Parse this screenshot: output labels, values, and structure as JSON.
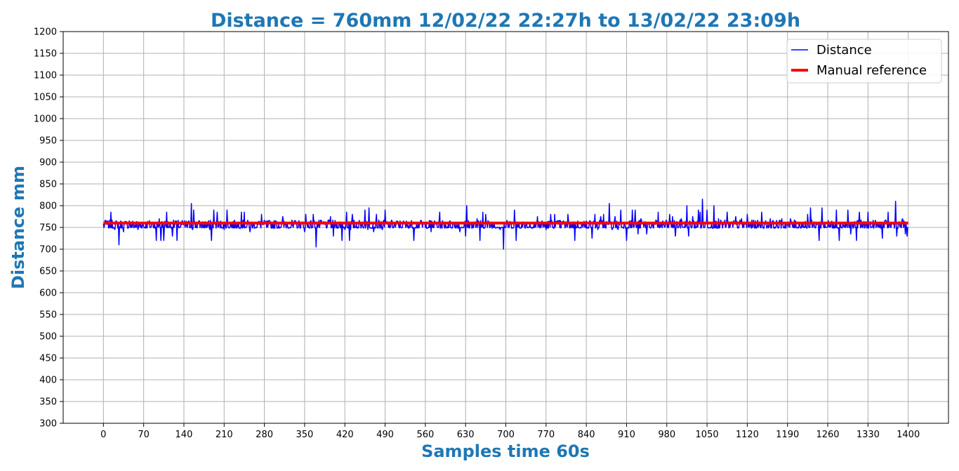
{
  "chart_data": {
    "type": "line",
    "title": "Distance = 760mm 12/02/22 22:27h to 13/02/22 23:09h",
    "xlabel": "Samples time 60s",
    "ylabel": "Distance mm",
    "xlim": [
      -70,
      1470
    ],
    "ylim": [
      300,
      1200
    ],
    "x_ticks": [
      0,
      70,
      140,
      210,
      280,
      350,
      420,
      490,
      560,
      630,
      700,
      770,
      840,
      910,
      980,
      1050,
      1120,
      1190,
      1260,
      1330,
      1400
    ],
    "y_ticks": [
      300,
      350,
      400,
      450,
      500,
      550,
      600,
      650,
      700,
      750,
      800,
      850,
      900,
      950,
      1000,
      1050,
      1100,
      1150,
      1200
    ],
    "grid": true,
    "legend_position": "upper right",
    "title_color": "#1f77b4",
    "series": [
      {
        "name": "Distance",
        "color": "#0000ff",
        "baseline": 756,
        "x_start": 0,
        "x_end": 1400,
        "spikes": [
          [
            5,
            765
          ],
          [
            10,
            750
          ],
          [
            13,
            785
          ],
          [
            20,
            745
          ],
          [
            27,
            710
          ],
          [
            35,
            740
          ],
          [
            45,
            765
          ],
          [
            60,
            745
          ],
          [
            85,
            760
          ],
          [
            92,
            720
          ],
          [
            97,
            770
          ],
          [
            100,
            720
          ],
          [
            105,
            720
          ],
          [
            110,
            785
          ],
          [
            120,
            730
          ],
          [
            125,
            765
          ],
          [
            128,
            720
          ],
          [
            140,
            760
          ],
          [
            153,
            805
          ],
          [
            155,
            745
          ],
          [
            157,
            790
          ],
          [
            170,
            760
          ],
          [
            185,
            745
          ],
          [
            188,
            720
          ],
          [
            192,
            790
          ],
          [
            198,
            785
          ],
          [
            210,
            745
          ],
          [
            215,
            790
          ],
          [
            230,
            760
          ],
          [
            240,
            785
          ],
          [
            245,
            785
          ],
          [
            255,
            740
          ],
          [
            275,
            780
          ],
          [
            300,
            765
          ],
          [
            312,
            775
          ],
          [
            330,
            750
          ],
          [
            350,
            740
          ],
          [
            352,
            780
          ],
          [
            365,
            780
          ],
          [
            370,
            705
          ],
          [
            390,
            760
          ],
          [
            395,
            775
          ],
          [
            400,
            730
          ],
          [
            415,
            720
          ],
          [
            420,
            745
          ],
          [
            423,
            785
          ],
          [
            428,
            720
          ],
          [
            430,
            745
          ],
          [
            433,
            780
          ],
          [
            450,
            760
          ],
          [
            455,
            790
          ],
          [
            460,
            745
          ],
          [
            462,
            795
          ],
          [
            470,
            740
          ],
          [
            475,
            780
          ],
          [
            485,
            745
          ],
          [
            490,
            790
          ],
          [
            500,
            755
          ],
          [
            530,
            755
          ],
          [
            540,
            720
          ],
          [
            550,
            760
          ],
          [
            560,
            750
          ],
          [
            570,
            740
          ],
          [
            585,
            785
          ],
          [
            600,
            760
          ],
          [
            620,
            740
          ],
          [
            630,
            730
          ],
          [
            632,
            800
          ],
          [
            650,
            770
          ],
          [
            655,
            720
          ],
          [
            660,
            785
          ],
          [
            665,
            780
          ],
          [
            690,
            745
          ],
          [
            696,
            700
          ],
          [
            700,
            750
          ],
          [
            715,
            790
          ],
          [
            718,
            720
          ],
          [
            735,
            760
          ],
          [
            750,
            750
          ],
          [
            755,
            775
          ],
          [
            770,
            745
          ],
          [
            778,
            780
          ],
          [
            785,
            780
          ],
          [
            800,
            765
          ],
          [
            808,
            780
          ],
          [
            820,
            720
          ],
          [
            830,
            750
          ],
          [
            840,
            765
          ],
          [
            845,
            755
          ],
          [
            850,
            725
          ],
          [
            855,
            780
          ],
          [
            860,
            745
          ],
          [
            865,
            775
          ],
          [
            870,
            780
          ],
          [
            880,
            805
          ],
          [
            885,
            745
          ],
          [
            890,
            775
          ],
          [
            895,
            745
          ],
          [
            900,
            790
          ],
          [
            910,
            720
          ],
          [
            915,
            765
          ],
          [
            920,
            790
          ],
          [
            925,
            790
          ],
          [
            930,
            735
          ],
          [
            935,
            770
          ],
          [
            945,
            735
          ],
          [
            955,
            760
          ],
          [
            965,
            785
          ],
          [
            980,
            760
          ],
          [
            985,
            780
          ],
          [
            990,
            775
          ],
          [
            995,
            730
          ],
          [
            1005,
            770
          ],
          [
            1015,
            800
          ],
          [
            1018,
            730
          ],
          [
            1025,
            775
          ],
          [
            1035,
            790
          ],
          [
            1038,
            785
          ],
          [
            1042,
            815
          ],
          [
            1050,
            790
          ],
          [
            1055,
            750
          ],
          [
            1062,
            800
          ],
          [
            1070,
            770
          ],
          [
            1075,
            760
          ],
          [
            1085,
            785
          ],
          [
            1090,
            750
          ],
          [
            1100,
            775
          ],
          [
            1110,
            770
          ],
          [
            1120,
            780
          ],
          [
            1130,
            760
          ],
          [
            1140,
            755
          ],
          [
            1145,
            785
          ],
          [
            1150,
            760
          ],
          [
            1160,
            770
          ],
          [
            1170,
            750
          ],
          [
            1180,
            770
          ],
          [
            1190,
            760
          ],
          [
            1195,
            770
          ],
          [
            1205,
            750
          ],
          [
            1215,
            760
          ],
          [
            1225,
            780
          ],
          [
            1230,
            795
          ],
          [
            1240,
            760
          ],
          [
            1245,
            720
          ],
          [
            1250,
            795
          ],
          [
            1260,
            755
          ],
          [
            1270,
            760
          ],
          [
            1275,
            790
          ],
          [
            1280,
            720
          ],
          [
            1290,
            760
          ],
          [
            1295,
            790
          ],
          [
            1300,
            735
          ],
          [
            1305,
            750
          ],
          [
            1310,
            720
          ],
          [
            1315,
            785
          ],
          [
            1325,
            750
          ],
          [
            1330,
            785
          ],
          [
            1345,
            760
          ],
          [
            1350,
            750
          ],
          [
            1355,
            725
          ],
          [
            1365,
            785
          ],
          [
            1375,
            760
          ],
          [
            1378,
            810
          ],
          [
            1380,
            730
          ],
          [
            1385,
            755
          ],
          [
            1390,
            770
          ],
          [
            1395,
            735
          ],
          [
            1398,
            730
          ]
        ]
      },
      {
        "name": "Manual reference",
        "color": "#ff0000",
        "x": [
          0,
          1400
        ],
        "y": [
          760,
          760
        ]
      }
    ]
  }
}
